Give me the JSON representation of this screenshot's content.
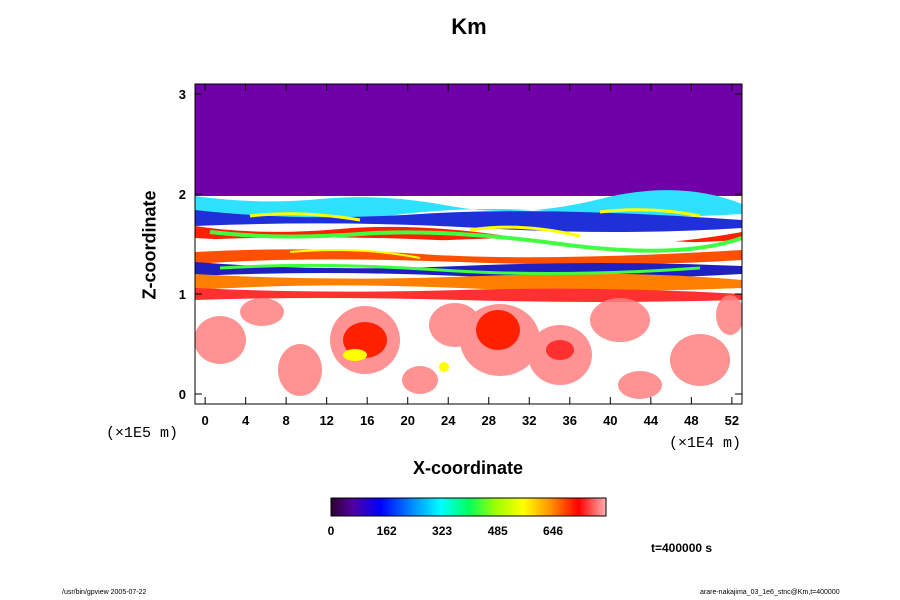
{
  "chart_data": {
    "type": "heatmap",
    "title": "Km",
    "xlabel": "X-coordinate",
    "ylabel": "Z-coordinate",
    "x_scale_note": "(×1E4 m)",
    "y_scale_note": "(×1E5 m)",
    "xlim": [
      -1,
      53
    ],
    "ylim": [
      -0.1,
      3.1
    ],
    "x_ticks": [
      0,
      4,
      8,
      12,
      16,
      20,
      24,
      28,
      32,
      36,
      40,
      44,
      48,
      52
    ],
    "y_ticks": [
      0,
      1,
      2,
      3
    ],
    "colorbar": {
      "ticks": [
        0,
        162,
        323,
        485,
        646
      ],
      "range": [
        0,
        800
      ]
    },
    "annotation": "t=400000 s",
    "regions": [
      {
        "x0": -1,
        "x1": 53,
        "y0": 2.0,
        "y1": 3.1,
        "value": 0,
        "note": "uniform minimum value above z=2"
      },
      {
        "x0": -1,
        "x1": 53,
        "y0": 1.0,
        "y1": 2.0,
        "value": 400,
        "note": "highly variable layered band"
      },
      {
        "x0": -1,
        "x1": 53,
        "y0": -0.1,
        "y1": 1.0,
        "value": 700,
        "note": "mostly high values with scattered lower patches"
      }
    ],
    "grid": false
  },
  "footer": {
    "left": "/usr/bin/gpview 2005-07-22",
    "right": "arare-nakajima_03_1e6_stnc@Km,t=400000"
  },
  "colors": {
    "upper_fill": "#7000a8",
    "frame": "#000000"
  }
}
